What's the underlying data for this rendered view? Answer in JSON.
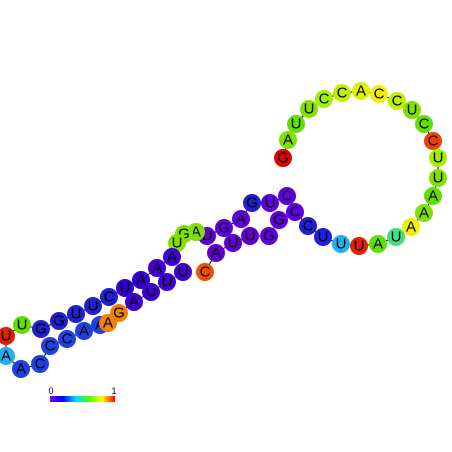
{
  "nodes": [
    {
      "label": "G",
      "color": "#e00000"
    },
    {
      "label": "A",
      "color": "#80e000"
    },
    {
      "label": "U",
      "color": "#60e000"
    },
    {
      "label": "U",
      "color": "#80e000"
    },
    {
      "label": "C",
      "color": "#a0f000"
    },
    {
      "label": "C",
      "color": "#c0f000"
    },
    {
      "label": "A",
      "color": "#e0f000"
    },
    {
      "label": "C",
      "color": "#f0f000"
    },
    {
      "label": "C",
      "color": "#c0f000"
    },
    {
      "label": "U",
      "color": "#80e000"
    },
    {
      "label": "C",
      "color": "#60e000"
    },
    {
      "label": "C",
      "color": "#f04000"
    },
    {
      "label": "U",
      "color": "#a0f000"
    },
    {
      "label": "U",
      "color": "#80e000"
    },
    {
      "label": "A",
      "color": "#60e000"
    },
    {
      "label": "A",
      "color": "#80e000"
    },
    {
      "label": "A",
      "color": "#f0f000"
    },
    {
      "label": "U",
      "color": "#40e080"
    },
    {
      "label": "A",
      "color": "#60e000"
    },
    {
      "label": "U",
      "color": "#e02000"
    },
    {
      "label": "U",
      "color": "#20b0f0"
    },
    {
      "label": "U",
      "color": "#2020e0"
    },
    {
      "label": "C",
      "color": "#2020d0"
    },
    {
      "label": "C",
      "color": "#6000e0"
    },
    {
      "label": "G",
      "color": "#6000e0"
    },
    {
      "label": "G",
      "color": "#6000e0"
    },
    {
      "label": "U",
      "color": "#6000d0"
    },
    {
      "label": "U",
      "color": "#6000d0"
    },
    {
      "label": "A",
      "color": "#6000d0"
    },
    {
      "label": "C",
      "color": "#f05000"
    },
    {
      "label": "C",
      "color": "#6000e0"
    },
    {
      "label": "U",
      "color": "#6000e0"
    },
    {
      "label": "G",
      "color": "#2020d0"
    },
    {
      "label": "A",
      "color": "#6000e0"
    },
    {
      "label": "G",
      "color": "#6000e0"
    },
    {
      "label": "U",
      "color": "#6000d0"
    },
    {
      "label": "A",
      "color": "#80e000"
    },
    {
      "label": "G",
      "color": "#80e000"
    },
    {
      "label": "U",
      "color": "#80e000"
    },
    {
      "label": "A",
      "color": "#4000d0"
    },
    {
      "label": "A",
      "color": "#4000d0"
    },
    {
      "label": "A",
      "color": "#3000d0"
    },
    {
      "label": "U",
      "color": "#3000d0"
    },
    {
      "label": "C",
      "color": "#2020d0"
    },
    {
      "label": "U",
      "color": "#2020d0"
    },
    {
      "label": "U",
      "color": "#2020d0"
    },
    {
      "label": "G",
      "color": "#2020d0"
    },
    {
      "label": "G",
      "color": "#2020d0"
    },
    {
      "label": "U",
      "color": "#60e000"
    },
    {
      "label": "U",
      "color": "#e02000"
    },
    {
      "label": "A",
      "color": "#20b0f0"
    },
    {
      "label": "A",
      "color": "#2040e0"
    },
    {
      "label": "C",
      "color": "#2040e0"
    },
    {
      "label": "C",
      "color": "#2040e0"
    },
    {
      "label": "C",
      "color": "#2040e0"
    },
    {
      "label": "A",
      "color": "#2040e0"
    },
    {
      "label": "A",
      "color": "#2040e0"
    },
    {
      "label": "A",
      "color": "#f08000"
    },
    {
      "label": "G",
      "color": "#f08000"
    },
    {
      "label": "A",
      "color": "#4000d0"
    },
    {
      "label": "U",
      "color": "#4000d0"
    },
    {
      "label": "U",
      "color": "#4000d0"
    },
    {
      "label": "U",
      "color": "#4000d0"
    }
  ],
  "colorbar": {
    "min_label": "0",
    "max_label": "1"
  }
}
